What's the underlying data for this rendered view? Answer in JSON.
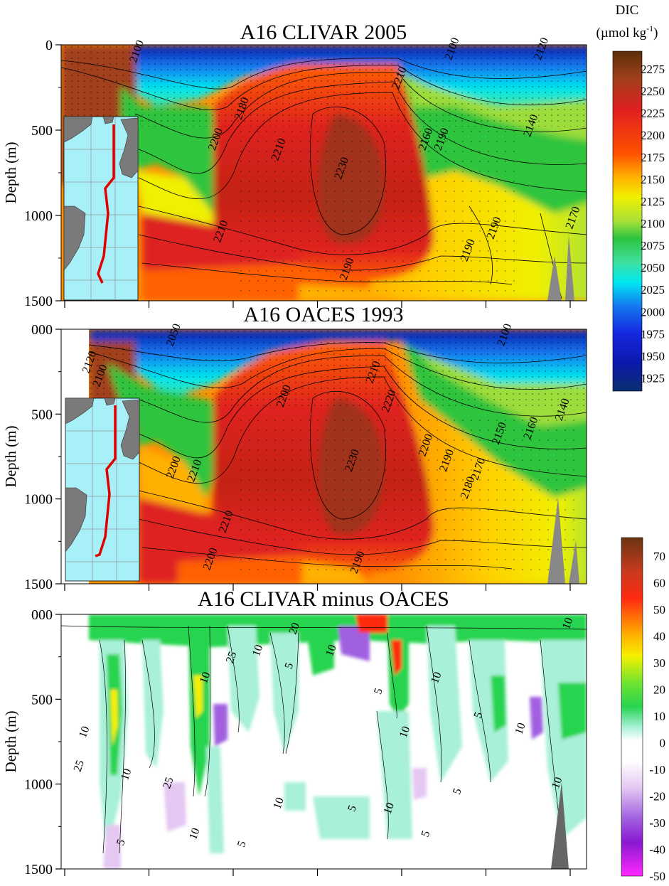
{
  "chart_data": [
    {
      "type": "heatmap",
      "title": "A16 CLIVAR 2005",
      "ylabel": "Depth (m)",
      "yticks": [
        "0",
        "500",
        "1000",
        "1500"
      ],
      "ylim": [
        0,
        1500
      ],
      "y_inverted": true,
      "variable": "DIC",
      "contour_labels": [
        {
          "text": "2100",
          "x": 0.75,
          "y": 30
        },
        {
          "text": "2120",
          "x": 0.92,
          "y": 30
        },
        {
          "text": "2100",
          "x": 0.15,
          "y": 45
        },
        {
          "text": "2210",
          "x": 0.65,
          "y": 200
        },
        {
          "text": "2180",
          "x": 0.35,
          "y": 380
        },
        {
          "text": "2160",
          "x": 0.7,
          "y": 560
        },
        {
          "text": "2200",
          "x": 0.3,
          "y": 560
        },
        {
          "text": "2210",
          "x": 0.42,
          "y": 620
        },
        {
          "text": "2230",
          "x": 0.54,
          "y": 730
        },
        {
          "text": "2190",
          "x": 0.73,
          "y": 560
        },
        {
          "text": "2140",
          "x": 0.9,
          "y": 480
        },
        {
          "text": "2190",
          "x": 0.83,
          "y": 1080
        },
        {
          "text": "2190",
          "x": 0.78,
          "y": 1210
        },
        {
          "text": "2210",
          "x": 0.31,
          "y": 1100
        },
        {
          "text": "2190",
          "x": 0.55,
          "y": 1320
        },
        {
          "text": "2170",
          "x": 0.98,
          "y": 1020
        }
      ]
    },
    {
      "type": "heatmap",
      "title": "A16 OACES 1993",
      "ylabel": "Depth (m)",
      "yticks": [
        "000",
        "500",
        "1000",
        "1500"
      ],
      "ylim": [
        0,
        1500
      ],
      "y_inverted": true,
      "variable": "DIC",
      "contour_labels": [
        {
          "text": "2050",
          "x": 0.22,
          "y": 40
        },
        {
          "text": "2100",
          "x": 0.85,
          "y": 40
        },
        {
          "text": "2120",
          "x": 0.06,
          "y": 200
        },
        {
          "text": "2100",
          "x": 0.08,
          "y": 280
        },
        {
          "text": "2210",
          "x": 0.6,
          "y": 260
        },
        {
          "text": "2220",
          "x": 0.63,
          "y": 430
        },
        {
          "text": "2200",
          "x": 0.43,
          "y": 400
        },
        {
          "text": "2200",
          "x": 0.7,
          "y": 690
        },
        {
          "text": "2190",
          "x": 0.74,
          "y": 780
        },
        {
          "text": "2230",
          "x": 0.56,
          "y": 780
        },
        {
          "text": "2200",
          "x": 0.22,
          "y": 820
        },
        {
          "text": "2210",
          "x": 0.26,
          "y": 840
        },
        {
          "text": "2150",
          "x": 0.84,
          "y": 620
        },
        {
          "text": "2160",
          "x": 0.9,
          "y": 590
        },
        {
          "text": "2140",
          "x": 0.96,
          "y": 480
        },
        {
          "text": "2170",
          "x": 0.8,
          "y": 830
        },
        {
          "text": "2180",
          "x": 0.78,
          "y": 940
        },
        {
          "text": "2210",
          "x": 0.32,
          "y": 1140
        },
        {
          "text": "2200",
          "x": 0.29,
          "y": 1360
        },
        {
          "text": "2190",
          "x": 0.57,
          "y": 1380
        }
      ]
    },
    {
      "type": "heatmap",
      "title": "A16 CLIVAR minus OACES",
      "ylabel": "Depth (m)",
      "yticks": [
        "000",
        "500",
        "1000",
        "1500"
      ],
      "ylim": [
        0,
        1500
      ],
      "y_inverted": true,
      "variable": "DIC difference",
      "contour_labels": [
        {
          "text": "10",
          "x": 0.05,
          "y": 700
        },
        {
          "text": "25",
          "x": 0.04,
          "y": 900
        },
        {
          "text": "10",
          "x": 0.13,
          "y": 950
        },
        {
          "text": "25",
          "x": 0.21,
          "y": 1000
        },
        {
          "text": "10",
          "x": 0.28,
          "y": 380
        },
        {
          "text": "10",
          "x": 0.26,
          "y": 1300
        },
        {
          "text": "25",
          "x": 0.33,
          "y": 260
        },
        {
          "text": "10",
          "x": 0.38,
          "y": 220
        },
        {
          "text": "5",
          "x": 0.44,
          "y": 310
        },
        {
          "text": "10",
          "x": 0.52,
          "y": 220
        },
        {
          "text": "10",
          "x": 0.66,
          "y": 700
        },
        {
          "text": "5",
          "x": 0.61,
          "y": 460
        },
        {
          "text": "10",
          "x": 0.72,
          "y": 380
        },
        {
          "text": "5",
          "x": 0.7,
          "y": 1300
        },
        {
          "text": "10",
          "x": 0.63,
          "y": 1150
        },
        {
          "text": "5",
          "x": 0.76,
          "y": 1050
        },
        {
          "text": "10",
          "x": 0.88,
          "y": 680
        },
        {
          "text": "10",
          "x": 0.95,
          "y": 1000
        },
        {
          "text": "10",
          "x": 0.97,
          "y": 60
        },
        {
          "text": "5",
          "x": 0.8,
          "y": 600
        },
        {
          "text": "5",
          "x": 0.12,
          "y": 1350
        },
        {
          "text": "10",
          "x": 0.42,
          "y": 1120
        },
        {
          "text": "5",
          "x": 0.56,
          "y": 1150
        },
        {
          "text": "5",
          "x": 0.35,
          "y": 1360
        },
        {
          "text": "20",
          "x": 0.45,
          "y": 90
        }
      ]
    }
  ],
  "colorbars": [
    {
      "title": "DIC",
      "unit": "(µmol kg",
      "unit_sup": "-1",
      "unit_close": ")",
      "ticks": [
        "2275",
        "2250",
        "2225",
        "2200",
        "2175",
        "2150",
        "2125",
        "2100",
        "2075",
        "2050",
        "2025",
        "2000",
        "1975",
        "1950",
        "1925"
      ],
      "range": [
        1910,
        2295
      ],
      "colors": [
        "#5a2e08",
        "#a1401c",
        "#de2020",
        "#ff5000",
        "#ffb000",
        "#f0f000",
        "#a8e03a",
        "#2ec43e",
        "#40e0a0",
        "#00e8f0",
        "#1478f0",
        "#1428e0",
        "#0c18a8",
        "#0a2870"
      ]
    },
    {
      "title": "",
      "ticks": [
        "70",
        "60",
        "50",
        "40",
        "30",
        "20",
        "10",
        "0",
        "-10",
        "-20",
        "-30",
        "-40",
        "-50"
      ],
      "range": [
        -50,
        77
      ],
      "colors": [
        "#6a3412",
        "#c83a1e",
        "#ff2a10",
        "#ffb400",
        "#f5f000",
        "#6ee430",
        "#26d450",
        "#a8f0d8",
        "#ffffff",
        "#e4c8f2",
        "#a060e0",
        "#8a18d0",
        "#ff28ff"
      ]
    }
  ]
}
